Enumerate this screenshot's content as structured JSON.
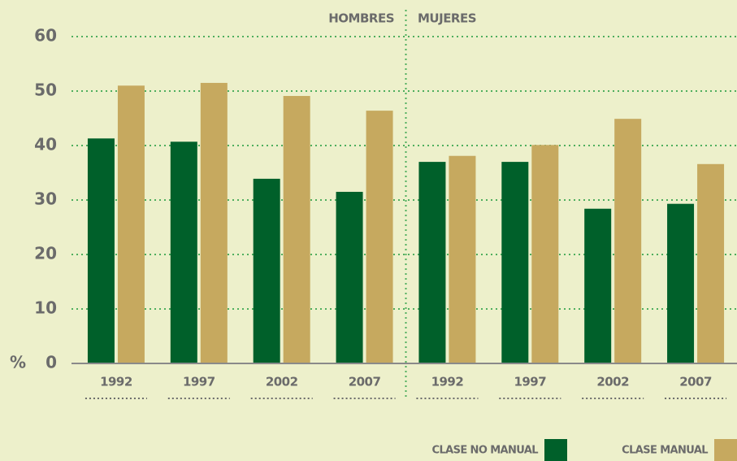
{
  "chart_data": {
    "type": "bar",
    "groups": [
      "HOMBRES",
      "MUJERES"
    ],
    "y_label": "%",
    "categories": [
      "1992",
      "1997",
      "2002",
      "2007",
      "1992",
      "1997",
      "2002",
      "2007"
    ],
    "series": [
      {
        "name": "CLASE NO MANUAL",
        "color": "#00602a",
        "values": [
          41.3,
          40.7,
          33.9,
          31.5,
          37,
          37,
          28.4,
          29.3
        ]
      },
      {
        "name": "CLASE MANUAL",
        "color": "#c6a95f",
        "values": [
          51,
          51.5,
          49.1,
          46.4,
          38.1,
          40.1,
          44.9,
          36.6
        ]
      }
    ],
    "ylim": [
      0,
      60
    ],
    "yticks": [
      0,
      10,
      20,
      30,
      40,
      50,
      60
    ],
    "grid": true,
    "legend": "bottom-right"
  }
}
